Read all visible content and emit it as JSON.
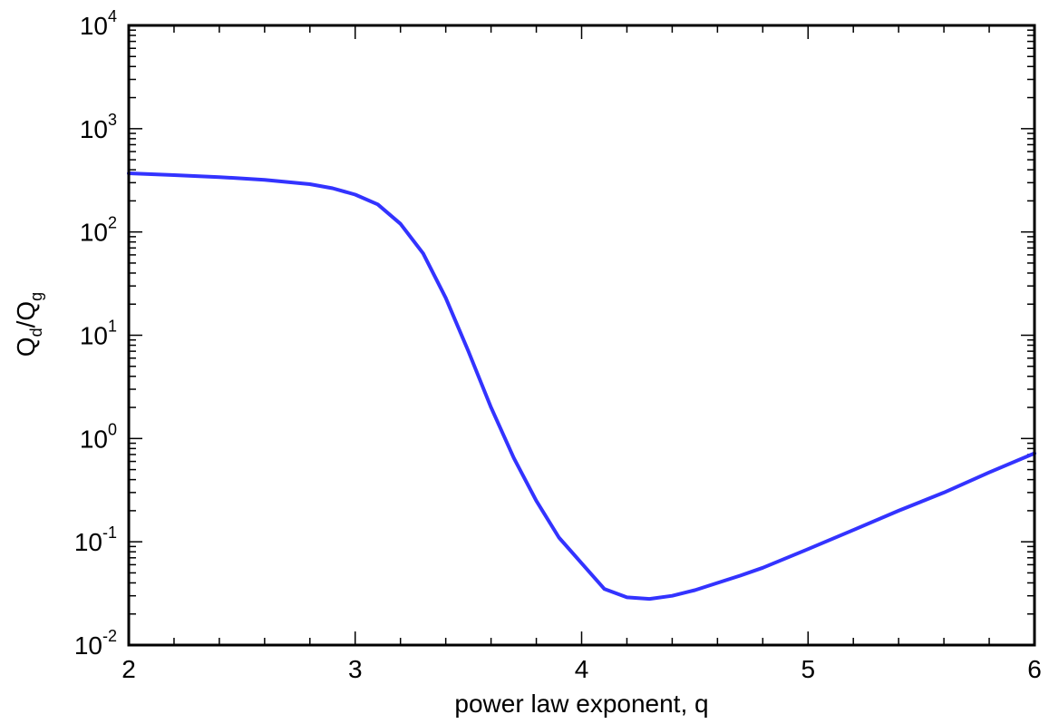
{
  "chart_data": {
    "type": "line",
    "title": "",
    "xlabel": "power law exponent, q",
    "ylabel": {
      "base": "Q",
      "num_sub": "d",
      "slash": "/",
      "den_sub": "g"
    },
    "xlim": [
      2,
      6
    ],
    "ylim": [
      0.01,
      10000
    ],
    "yscale": "log",
    "grid": false,
    "x_ticks": [
      "2",
      "3",
      "4",
      "5",
      "6"
    ],
    "y_ticks": [
      {
        "base": "10",
        "exp": "-2"
      },
      {
        "base": "10",
        "exp": "-1"
      },
      {
        "base": "10",
        "exp": "0"
      },
      {
        "base": "10",
        "exp": "1"
      },
      {
        "base": "10",
        "exp": "2"
      },
      {
        "base": "10",
        "exp": "3"
      },
      {
        "base": "10",
        "exp": "4"
      }
    ],
    "series": [
      {
        "color": "#3333ff",
        "x": [
          2.0,
          2.2,
          2.4,
          2.6,
          2.8,
          2.9,
          3.0,
          3.1,
          3.2,
          3.3,
          3.4,
          3.5,
          3.6,
          3.7,
          3.8,
          3.9,
          4.0,
          4.1,
          4.2,
          4.3,
          4.4,
          4.5,
          4.6,
          4.7,
          4.8,
          5.0,
          5.2,
          5.4,
          5.6,
          5.8,
          6.0
        ],
        "y": [
          370,
          355,
          340,
          320,
          290,
          265,
          230,
          185,
          120,
          62,
          23,
          7,
          2.0,
          0.65,
          0.25,
          0.11,
          0.062,
          0.035,
          0.029,
          0.028,
          0.03,
          0.034,
          0.04,
          0.047,
          0.056,
          0.085,
          0.13,
          0.2,
          0.3,
          0.47,
          0.72
        ]
      }
    ]
  }
}
